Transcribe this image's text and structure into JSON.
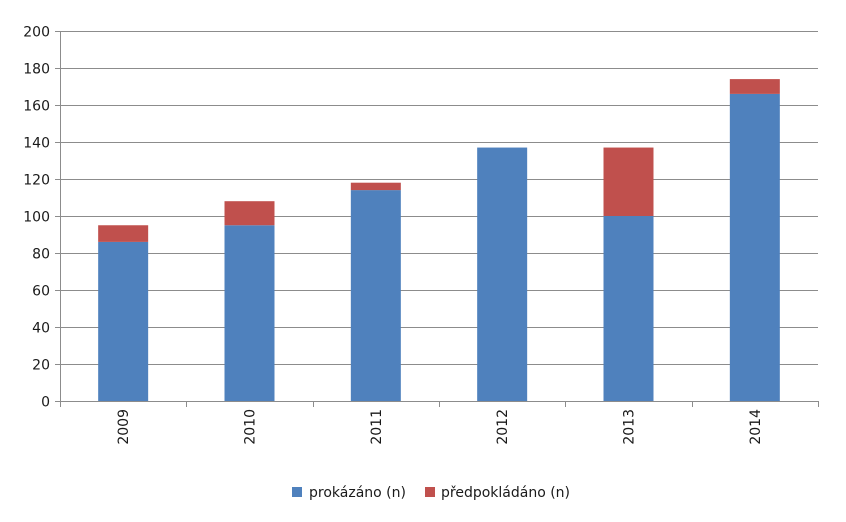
{
  "chart_data": {
    "type": "bar",
    "stacked": true,
    "categories": [
      "2009",
      "2010",
      "2011",
      "2012",
      "2013",
      "2014"
    ],
    "series": [
      {
        "name": "prokázáno (n)",
        "color": "#4F81BD",
        "values": [
          86,
          95,
          114,
          137,
          100,
          166
        ]
      },
      {
        "name": "předpokládáno (n)",
        "color": "#C0504D",
        "values": [
          9,
          13,
          4,
          0,
          37,
          8
        ]
      }
    ],
    "title": "",
    "xlabel": "",
    "ylabel": "",
    "ylim": [
      0,
      200
    ],
    "yticks": [
      "0",
      "20",
      "40",
      "60",
      "80",
      "100",
      "120",
      "140",
      "160",
      "180",
      "200"
    ],
    "grid": true,
    "legend_position": "bottom"
  }
}
